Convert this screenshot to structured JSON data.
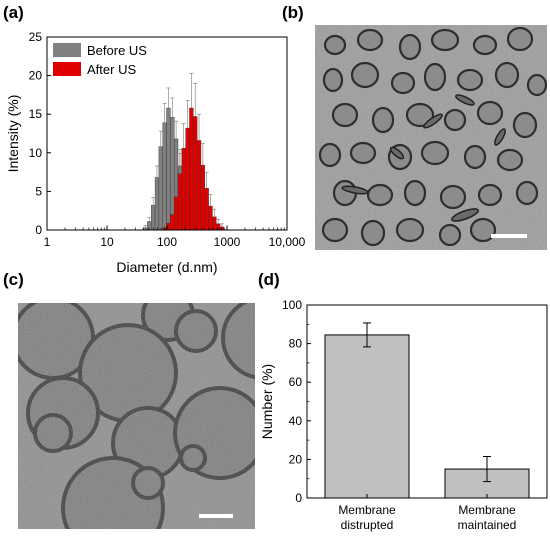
{
  "panels": {
    "a": "(a)",
    "b": "(b)",
    "c": "(c)",
    "d": "(d)"
  },
  "chart_data": [
    {
      "type": "bar",
      "xscale": "log",
      "xlabel": "Diameter (d.nm)",
      "ylabel": "Intensity (%)",
      "xlim": [
        1,
        10000
      ],
      "ylim": [
        0,
        25
      ],
      "xticks": [
        "1",
        "10",
        "100",
        "1000",
        "10,000"
      ],
      "yticks": [
        "0",
        "5",
        "10",
        "15",
        "20",
        "25"
      ],
      "legend_position": "top-left",
      "series": [
        {
          "name": "Before US",
          "color": "#808080",
          "x": [
            43.8,
            50.7,
            58.8,
            68.1,
            78.8,
            91.3,
            105.7,
            122.4,
            141.8,
            164.2,
            190.1,
            220.2,
            255.0,
            295.3
          ],
          "values": [
            0.3,
            1.1,
            3.2,
            6.8,
            10.8,
            13.9,
            15.8,
            14.6,
            11.8,
            8.3,
            4.9,
            2.2,
            0.8,
            0.2
          ],
          "errors": [
            0.3,
            0.5,
            1.0,
            1.5,
            2.0,
            2.5,
            2.6,
            2.5,
            2.3,
            2.1,
            1.6,
            1.2,
            0.7,
            0.3
          ]
        },
        {
          "name": "After US",
          "color": "#e00000",
          "x": [
            91.3,
            105.7,
            122.4,
            141.8,
            164.2,
            190.1,
            220.2,
            255.0,
            295.3,
            342.0,
            396.1,
            458.7,
            531.2,
            615.1,
            712.4,
            825.0
          ],
          "values": [
            0.3,
            0.9,
            2.0,
            4.3,
            7.3,
            10.6,
            13.2,
            15.8,
            14.7,
            11.6,
            8.4,
            5.4,
            3.1,
            1.7,
            0.8,
            0.4
          ],
          "errors": [
            0.3,
            0.6,
            1.0,
            1.8,
            2.6,
            3.2,
            3.6,
            4.5,
            4.3,
            3.4,
            2.8,
            2.1,
            1.5,
            1.0,
            0.6,
            0.4
          ]
        }
      ]
    },
    {
      "type": "bar",
      "categories": [
        "Membrane\ndistrupted",
        "Membrane\nmaintained"
      ],
      "values": [
        84.5,
        15.0
      ],
      "errors": [
        6.2,
        6.5
      ],
      "color": "#c0c0c0",
      "ylabel": "Number (%)",
      "ylim": [
        0,
        100
      ],
      "yticks": [
        "0",
        "20",
        "40",
        "60",
        "80",
        "100"
      ]
    }
  ]
}
